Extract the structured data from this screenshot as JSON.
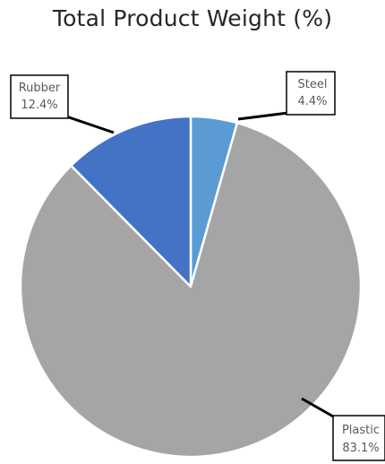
{
  "chart_data": {
    "type": "pie",
    "title": "Total Product Weight (%)",
    "slices": [
      {
        "name": "Steel",
        "value": 4.4,
        "label": "4.4%",
        "color": "#5B9BD5"
      },
      {
        "name": "Plastic",
        "value": 83.1,
        "label": "83.1%",
        "color": "#A5A5A5"
      },
      {
        "name": "Rubber",
        "value": 12.4,
        "label": "12.4%",
        "color": "#4472C4"
      }
    ],
    "start_angle": "12 o'clock",
    "direction": "clockwise",
    "legend": "none",
    "data_labels": "callouts outside"
  }
}
